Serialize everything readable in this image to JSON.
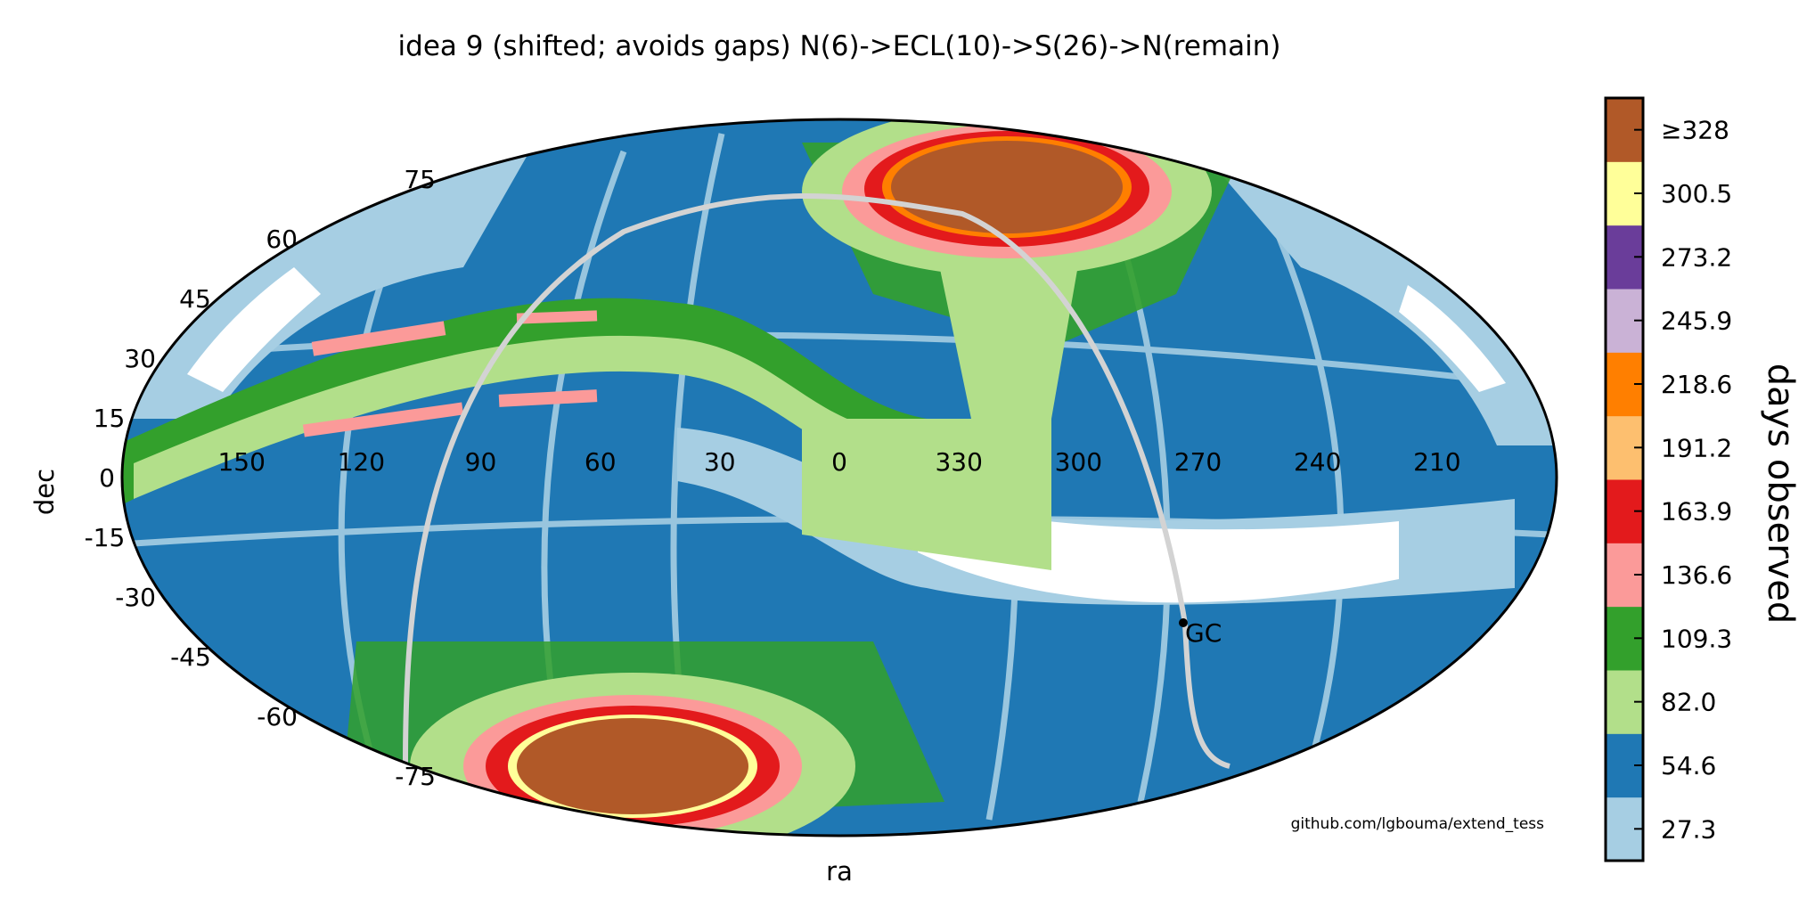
{
  "chart_data": {
    "type": "heatmap",
    "projection": "aitoff",
    "title": "idea 9 (shifted; avoids gaps) N(6)->ECL(10)->S(26)->N(remain)",
    "xlabel": "ra",
    "ylabel": "dec",
    "ra_ticks": [
      150,
      120,
      90,
      60,
      30,
      0,
      330,
      300,
      270,
      240,
      210
    ],
    "dec_ticks": [
      75,
      60,
      45,
      30,
      15,
      0,
      -15,
      -30,
      -45,
      -60,
      -75
    ],
    "colorbar": {
      "label": "days observed",
      "tick_labels": [
        "27.3",
        "54.6",
        "82.0",
        "109.3",
        "136.6",
        "163.9",
        "191.2",
        "218.6",
        "245.9",
        "273.2",
        "300.5",
        "≥328"
      ],
      "colors": [
        "#a6cee3",
        "#1f78b4",
        "#b2df8a",
        "#33a02c",
        "#fb9a99",
        "#e31a1c",
        "#fdbf6f",
        "#ff7f00",
        "#cab2d6",
        "#6a3d9a",
        "#ffff99",
        "#b15928"
      ]
    },
    "annotations": [
      {
        "text": "GC",
        "ra": 266.4,
        "dec": -28.9
      }
    ],
    "credit": "github.com/lgbouma/extend_tess",
    "grid": true
  }
}
